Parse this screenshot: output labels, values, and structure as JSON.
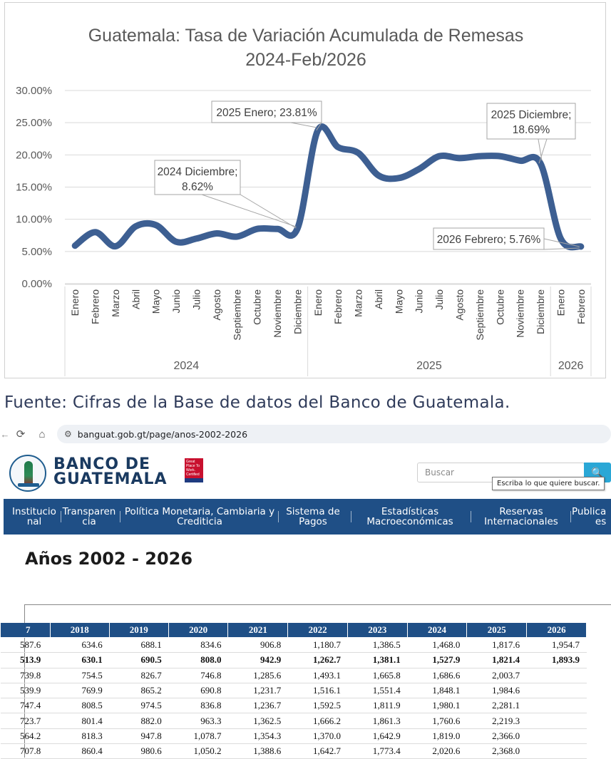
{
  "chart_data": {
    "type": "line",
    "title_lines": [
      "Guatemala:  Tasa de Variación Acumulada de Remesas",
      "2024-Feb/2026"
    ],
    "ylim": [
      0,
      30
    ],
    "yticks": [
      0,
      5,
      10,
      15,
      20,
      25,
      30
    ],
    "ytick_labels": [
      "0.00%",
      "5.00%",
      "10.00%",
      "15.00%",
      "20.00%",
      "25.00%",
      "30.00%"
    ],
    "grid": true,
    "legend": "none",
    "line_color": "#3d5f92",
    "categories": [
      "Enero",
      "Febrero",
      "Marzo",
      "Abril",
      "Mayo",
      "Junio",
      "Julio",
      "Agosto",
      "Septiembre",
      "Octubre",
      "Noviembre",
      "Diciembre",
      "Enero",
      "Febrero",
      "Marzo",
      "Abril",
      "Mayo",
      "Junio",
      "Julio",
      "Agosto",
      "Septiembre",
      "Octubre",
      "Noviembre",
      "Diciembre",
      "Enero",
      "Febrero"
    ],
    "groups": [
      {
        "label": "2024",
        "count": 12
      },
      {
        "label": "2025",
        "count": 12
      },
      {
        "label": "2026",
        "count": 2
      }
    ],
    "series": [
      {
        "name": "Tasa de Variación Acumulada",
        "values": [
          5.9,
          8.0,
          5.8,
          8.9,
          9.1,
          6.5,
          7.0,
          7.8,
          7.3,
          8.5,
          8.5,
          8.62,
          23.81,
          21.2,
          20.3,
          16.8,
          16.4,
          17.8,
          19.8,
          19.5,
          19.8,
          19.8,
          19.1,
          18.69,
          7.0,
          5.76
        ]
      }
    ],
    "annotations": [
      {
        "lines": [
          "2025 Enero; 23.81%"
        ],
        "index": 12
      },
      {
        "lines": [
          "2024 Diciembre;",
          "8.62%"
        ],
        "index": 11
      },
      {
        "lines": [
          "2025 Diciembre;",
          "18.69%"
        ],
        "index": 23
      },
      {
        "lines": [
          "2026 Febrero; 5.76%"
        ],
        "index": 25
      }
    ]
  },
  "source_text": "Fuente:  Cifras de la Base de datos del Banco de Guatemala.",
  "browser": {
    "url": "banguat.gob.gt/page/anos-2002-2026",
    "back_icon": "←",
    "reload_icon": "⟳",
    "home_icon": "⌂",
    "site_info_icon": "⚙"
  },
  "header": {
    "logo_line1": "BANCO DE",
    "logo_line2": "GUATEMALA",
    "badge_text": "Great Place To Work. Certified",
    "search_placeholder": "Buscar",
    "search_icon": "🔍",
    "tooltip": "Escriba lo que quiere buscar."
  },
  "nav": [
    [
      "Institucio",
      "nal"
    ],
    [
      "Transparen",
      "cia"
    ],
    [
      "Política Monetaria, Cambiaria y",
      "Crediticia"
    ],
    [
      "Sistema de",
      "Pagos"
    ],
    [
      "Estadísticas",
      "Macroeconómicas"
    ],
    [
      "Reservas",
      "Internacionales"
    ],
    [
      "Publica",
      "es"
    ]
  ],
  "page_title": "Años 2002 - 2026",
  "table": {
    "headers": [
      "7",
      "2018",
      "2019",
      "2020",
      "2021",
      "2022",
      "2023",
      "2024",
      "2025",
      "2026"
    ],
    "rows": [
      [
        "587.6",
        "634.6",
        "688.1",
        "834.6",
        "906.8",
        "1,180.7",
        "1,386.5",
        "1,468.0",
        "1,817.6",
        "1,954.7"
      ],
      [
        "513.9",
        "630.1",
        "690.5",
        "808.0",
        "942.9",
        "1,262.7",
        "1,381.1",
        "1,527.9",
        "1,821.4",
        "1,893.9"
      ],
      [
        "739.8",
        "754.5",
        "826.7",
        "746.8",
        "1,285.6",
        "1,493.1",
        "1,665.8",
        "1,686.6",
        "2,003.7",
        ""
      ],
      [
        "539.9",
        "769.9",
        "865.2",
        "690.8",
        "1,231.7",
        "1,516.1",
        "1,551.4",
        "1,848.1",
        "1,984.6",
        ""
      ],
      [
        "747.4",
        "808.5",
        "974.5",
        "836.8",
        "1,236.7",
        "1,592.5",
        "1,811.9",
        "1,980.1",
        "2,281.1",
        ""
      ],
      [
        "723.7",
        "801.4",
        "882.0",
        "963.3",
        "1,362.5",
        "1,666.2",
        "1,861.3",
        "1,760.6",
        "2,219.3",
        ""
      ],
      [
        "564.2",
        "818.3",
        "947.8",
        "1,078.7",
        "1,354.3",
        "1,370.0",
        "1,642.9",
        "1,819.0",
        "2,366.0",
        ""
      ],
      [
        "707.8",
        "860.4",
        "980.6",
        "1,050.2",
        "1,388.6",
        "1,642.7",
        "1,773.4",
        "2,020.6",
        "2,368.0",
        ""
      ]
    ],
    "bold_row_index": 1
  }
}
